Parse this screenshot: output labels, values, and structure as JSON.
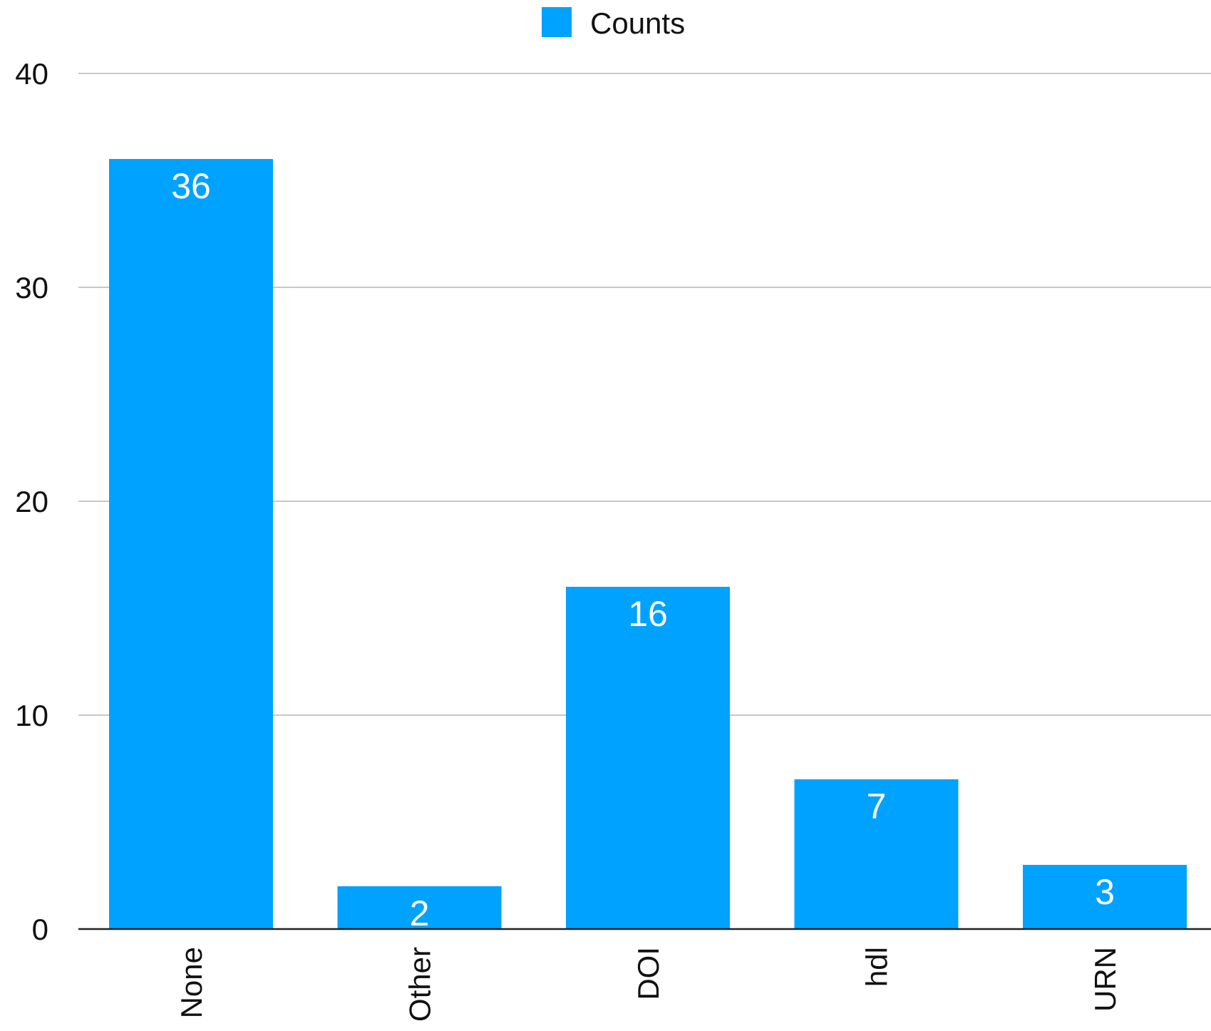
{
  "legend": {
    "label": "Counts"
  },
  "colors": {
    "bar": "#00A2FF",
    "grid": "#C8C8C8",
    "axis": "#222222",
    "data_label": "#FFFFFF",
    "text": "#111111"
  },
  "chart_data": {
    "type": "bar",
    "title": "",
    "xlabel": "",
    "ylabel": "",
    "categories": [
      "None",
      "Other",
      "DOI",
      "hdl",
      "URN"
    ],
    "series": [
      {
        "name": "Counts",
        "values": [
          36,
          2,
          16,
          7,
          3
        ]
      }
    ],
    "data_labels": [
      "36",
      "2",
      "16",
      "7",
      "3"
    ],
    "ylim": [
      0,
      40
    ],
    "yticks": [
      "0",
      "10",
      "20",
      "30",
      "40"
    ],
    "grid": true,
    "legend_position": "top-center",
    "x_tick_rotation": "vertical"
  }
}
